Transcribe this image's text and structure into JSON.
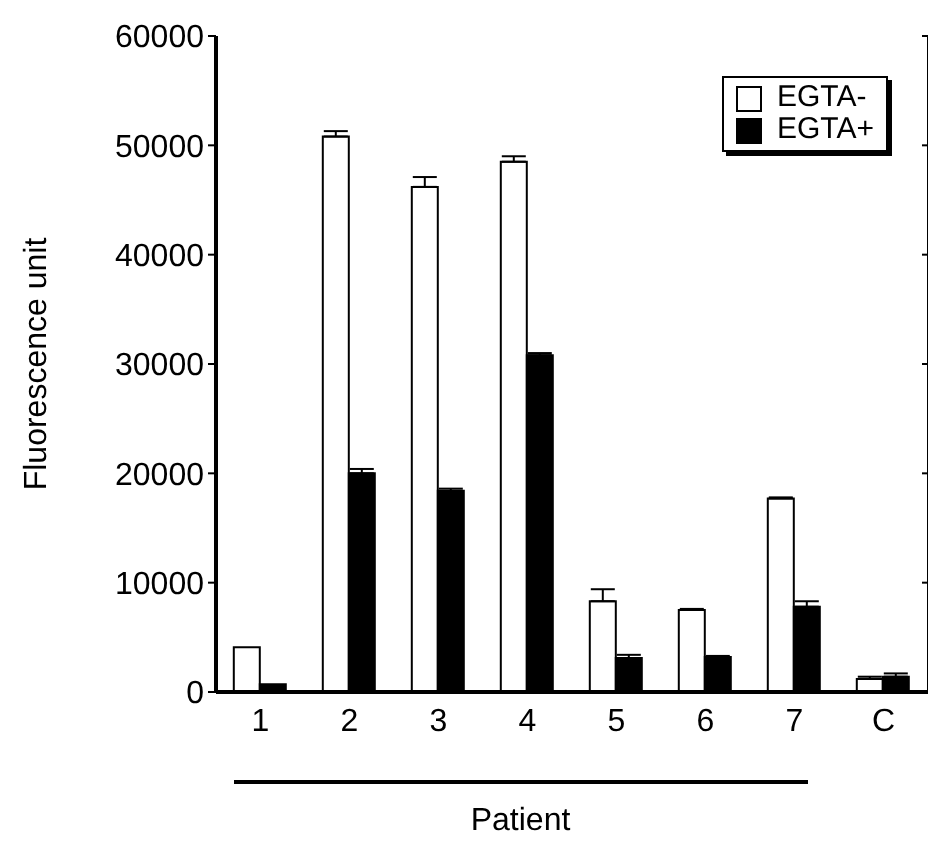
{
  "chart_data": {
    "type": "bar",
    "xlabel": "Patient",
    "ylabel": "Fluorescence unit",
    "categories": [
      "1",
      "2",
      "3",
      "4",
      "5",
      "6",
      "7",
      "C"
    ],
    "series": [
      {
        "name": "EGTA-",
        "color": "#ffffff",
        "values": [
          4100,
          50800,
          46200,
          48500,
          8300,
          7500,
          17700,
          1200
        ],
        "errors": [
          null,
          [
            50800,
            51300
          ],
          [
            46200,
            47100
          ],
          [
            48500,
            49000
          ],
          [
            8300,
            9400
          ],
          [
            7500,
            7600
          ],
          [
            17700,
            17800
          ],
          [
            1200,
            1400
          ]
        ]
      },
      {
        "name": "EGTA+",
        "color": "#000000",
        "values": [
          700,
          20000,
          18400,
          30800,
          3100,
          3200,
          7800,
          1400
        ],
        "errors": [
          null,
          [
            20000,
            20400
          ],
          [
            18400,
            18600
          ],
          [
            30800,
            31000
          ],
          [
            3100,
            3400
          ],
          [
            3200,
            3300
          ],
          [
            7800,
            8300
          ],
          [
            1400,
            1700
          ]
        ]
      }
    ],
    "ylim": [
      0,
      60000
    ],
    "yticks": [
      0,
      10000,
      20000,
      30000,
      40000,
      50000,
      60000
    ],
    "legend": "top right"
  }
}
